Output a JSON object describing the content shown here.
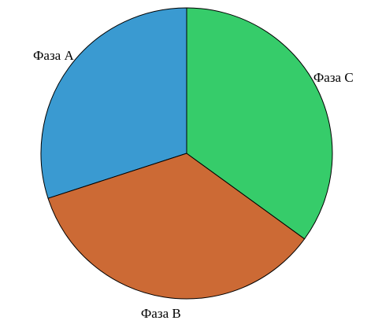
{
  "chart_data": {
    "type": "pie",
    "categories": [
      "Фаза A",
      "Фаза B",
      "Фаза C"
    ],
    "values": [
      30,
      35,
      35
    ],
    "colors": [
      "#3a9ad1",
      "#cc6a35",
      "#36cc6a"
    ]
  }
}
